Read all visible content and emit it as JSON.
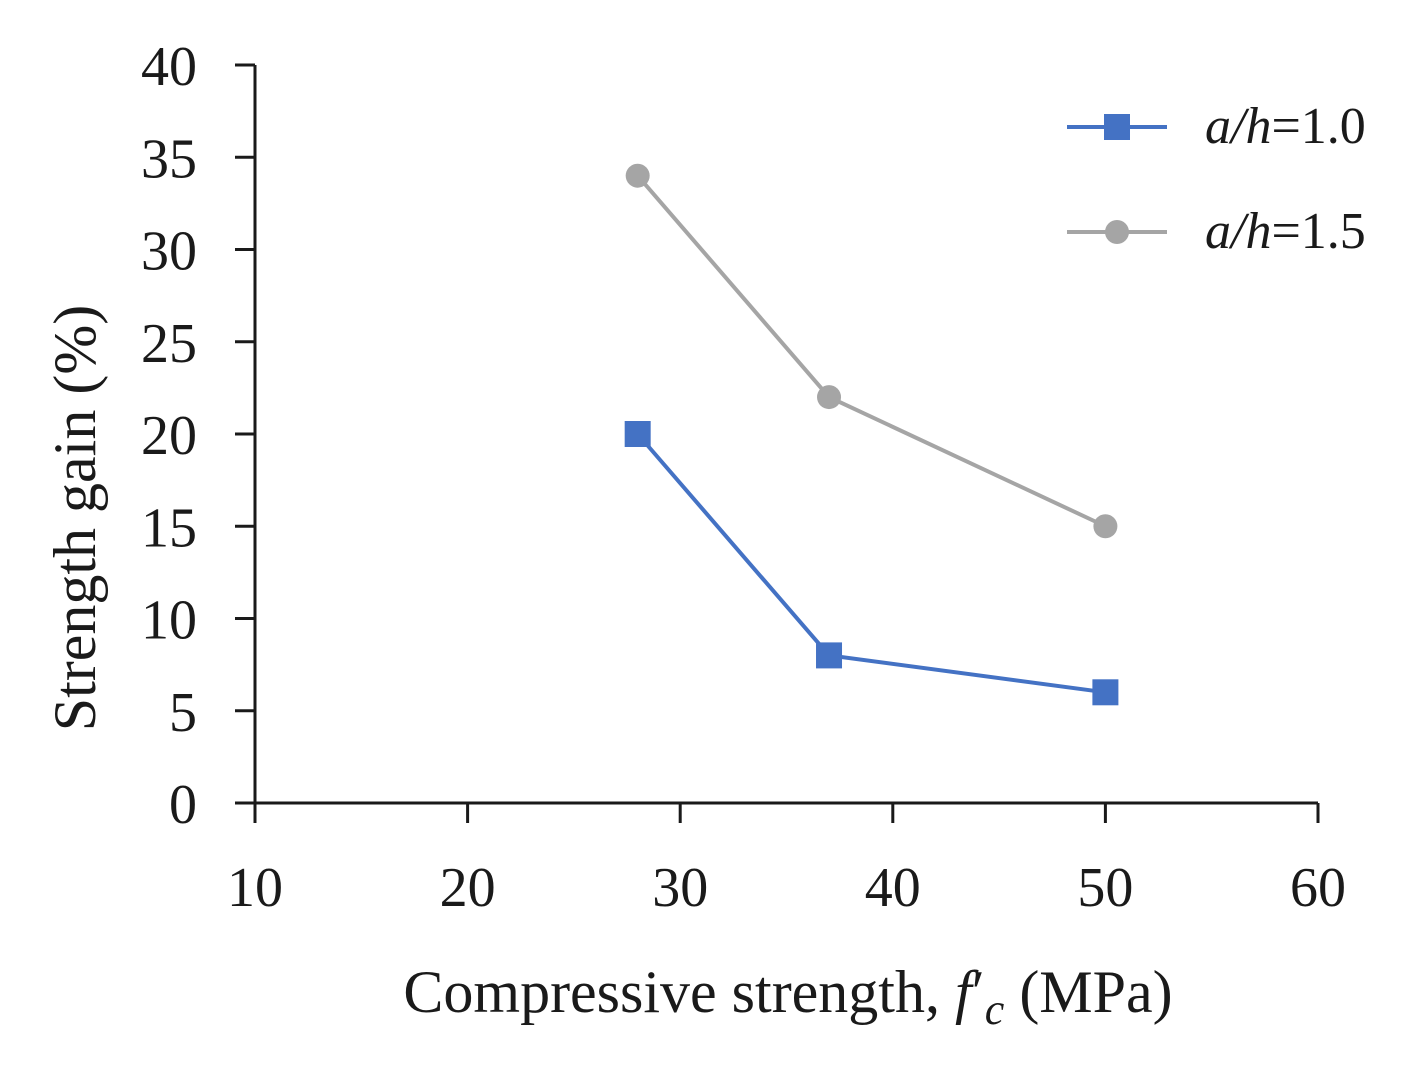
{
  "chart_data": {
    "type": "line",
    "title": "",
    "xlabel": {
      "prefix": "Compressive strength, ",
      "symbol": "f",
      "prime": "′",
      "subscript": "c",
      "suffix": " (MPa)"
    },
    "ylabel": "Strength gain (%)",
    "xlim": [
      10,
      60
    ],
    "ylim": [
      0,
      40
    ],
    "x_ticks": [
      10,
      20,
      30,
      40,
      50,
      60
    ],
    "y_ticks": [
      0,
      5,
      10,
      15,
      20,
      25,
      30,
      35,
      40
    ],
    "grid": false,
    "legend_position": "top-right",
    "series": [
      {
        "name": "a/h=1.0",
        "label_italic": "a/h",
        "label_rest": "=1.0",
        "color": "#4472C4",
        "marker": "square",
        "x": [
          28,
          37,
          50
        ],
        "values": [
          20,
          8,
          6
        ]
      },
      {
        "name": "a/h=1.5",
        "label_italic": "a/h",
        "label_rest": "=1.5",
        "color": "#A5A5A5",
        "marker": "circle",
        "x": [
          28,
          37,
          50
        ],
        "values": [
          34,
          22,
          15
        ]
      }
    ]
  }
}
